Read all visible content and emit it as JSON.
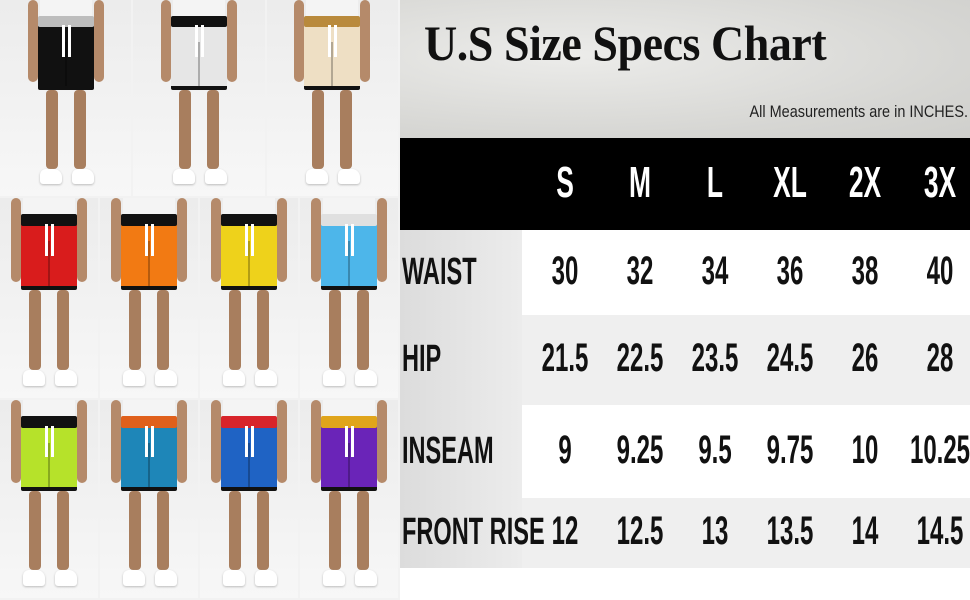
{
  "product_colors": [
    [
      "#111111",
      "#e6e6e6",
      "#eedfc4"
    ],
    [
      "#d91c1c",
      "#f27a13",
      "#eed21b",
      "#4db6ea"
    ],
    [
      "#b6e22a",
      "#1e86b8",
      "#1f63c4",
      "#6a24b8"
    ]
  ],
  "band_colors": [
    [
      "#bdbdbd",
      "#111111",
      "#b98a3c"
    ],
    [
      "#111111",
      "#111111",
      "#111111",
      "#e0e0e0"
    ],
    [
      "#111111",
      "#e0601c",
      "#d8242a",
      "#e0a51c"
    ]
  ],
  "chart": {
    "title": "U.S Size Specs Chart",
    "subtitle": "All Measurements are in INCHES.",
    "sizes": [
      "S",
      "M",
      "L",
      "XL",
      "2X",
      "3X"
    ],
    "rows": [
      {
        "label": "WAIST",
        "values": [
          "30",
          "32",
          "34",
          "36",
          "38",
          "40"
        ]
      },
      {
        "label": "HIP",
        "values": [
          "21.5",
          "22.5",
          "23.5",
          "24.5",
          "26",
          "28"
        ]
      },
      {
        "label": "INSEAM",
        "values": [
          "9",
          "9.25",
          "9.5",
          "9.75",
          "10",
          "10.25"
        ]
      },
      {
        "label": "FRONT RISE",
        "values": [
          "12",
          "12.5",
          "13",
          "13.5",
          "14",
          "14.5"
        ]
      }
    ]
  }
}
